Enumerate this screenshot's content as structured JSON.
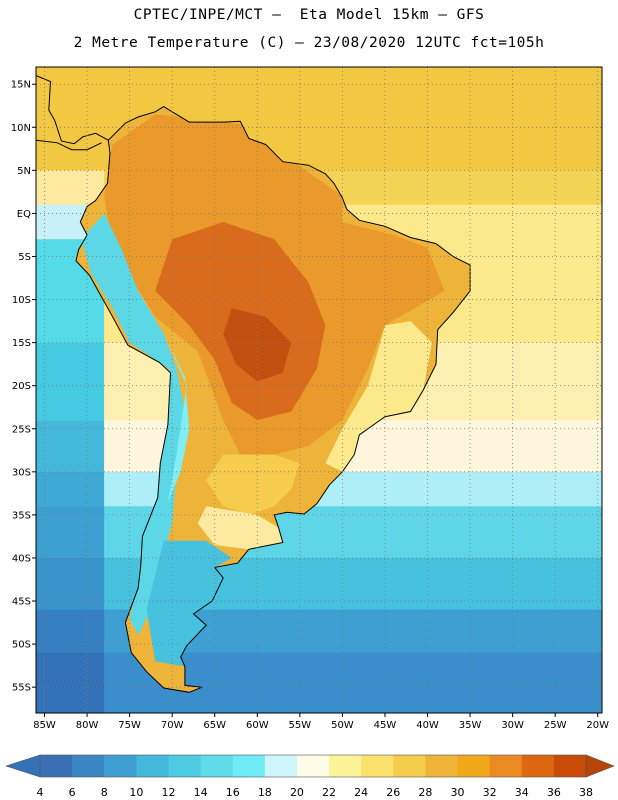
{
  "header": {
    "title_line1": "CPTEC/INPE/MCT –  Eta Model 15km – GFS",
    "title_line2": "2 Metre Temperature (C) – 23/08/2020 12UTC fct=105h"
  },
  "map": {
    "region": "South America",
    "lat_labels": [
      "15N",
      "10N",
      "5N",
      "EQ",
      "5S",
      "10S",
      "15S",
      "20S",
      "25S",
      "30S",
      "35S",
      "40S",
      "45S",
      "50S",
      "55S"
    ],
    "lat_values": [
      15,
      10,
      5,
      0,
      -5,
      -10,
      -15,
      -20,
      -25,
      -30,
      -35,
      -40,
      -45,
      -50,
      -55
    ],
    "lon_labels": [
      "85W",
      "80W",
      "75W",
      "70W",
      "65W",
      "60W",
      "55W",
      "50W",
      "45W",
      "40W",
      "35W",
      "30W",
      "25W",
      "20W"
    ],
    "lon_values": [
      -85,
      -80,
      -75,
      -70,
      -65,
      -60,
      -55,
      -50,
      -45,
      -40,
      -35,
      -30,
      -25,
      -20
    ],
    "lon_range": [
      -86,
      -19.5
    ],
    "lat_range": [
      -58,
      17
    ],
    "ocean_bands": [
      {
        "lat": 17,
        "east_color": "#f2c843",
        "pacific_color": "#f2c843"
      },
      {
        "lat": 5,
        "east_color": "#f4d455",
        "pacific_color": "#fde9a0"
      },
      {
        "lat": 1,
        "east_color": "#fbe98c",
        "pacific_color": "#c8f0f8"
      },
      {
        "lat": -3,
        "east_color": "#fbe98c",
        "pacific_color": "#55dbe8"
      },
      {
        "lat": -15,
        "east_color": "#fdf0b0",
        "pacific_color": "#44cbe2"
      },
      {
        "lat": -24,
        "east_color": "#fdf6dc",
        "pacific_color": "#43b8db"
      },
      {
        "lat": -30,
        "east_color": "#aeeef6",
        "pacific_color": "#3fa9d6"
      },
      {
        "lat": -34,
        "east_color": "#5fd6e8",
        "pacific_color": "#3c9fd1"
      },
      {
        "lat": -40,
        "east_color": "#46c2de",
        "pacific_color": "#3a94cc"
      },
      {
        "lat": -46,
        "east_color": "#3e9fd2",
        "pacific_color": "#367fc0"
      },
      {
        "lat": -51,
        "east_color": "#3a8ecb",
        "pacific_color": "#3472b8"
      },
      {
        "lat": -58,
        "east_color": "#3472b8",
        "pacific_color": "#3472b8"
      }
    ],
    "land_outline": [
      [
        -77.5,
        8.5
      ],
      [
        -76.5,
        9.5
      ],
      [
        -75.5,
        10.5
      ],
      [
        -74,
        11.2
      ],
      [
        -72,
        11.8
      ],
      [
        -71,
        12.4
      ],
      [
        -70,
        11.8
      ],
      [
        -68,
        10.6
      ],
      [
        -64,
        10.6
      ],
      [
        -62,
        10.7
      ],
      [
        -61,
        8.7
      ],
      [
        -59,
        8
      ],
      [
        -57,
        6
      ],
      [
        -54,
        5.6
      ],
      [
        -52,
        4.6
      ],
      [
        -51,
        3.5
      ],
      [
        -50,
        1.8
      ],
      [
        -49.5,
        0.5
      ],
      [
        -48,
        -0.8
      ],
      [
        -45,
        -1.5
      ],
      [
        -42,
        -2.8
      ],
      [
        -39,
        -3.5
      ],
      [
        -37,
        -5
      ],
      [
        -35,
        -6
      ],
      [
        -35,
        -9
      ],
      [
        -37,
        -11.5
      ],
      [
        -38.8,
        -13.5
      ],
      [
        -39,
        -17.5
      ],
      [
        -40.5,
        -20.5
      ],
      [
        -42,
        -23
      ],
      [
        -45,
        -23.6
      ],
      [
        -48,
        -25.7
      ],
      [
        -48.6,
        -28
      ],
      [
        -50,
        -30
      ],
      [
        -51.5,
        -31.5
      ],
      [
        -53,
        -33.7
      ],
      [
        -54.5,
        -34.9
      ],
      [
        -56.5,
        -34.7
      ],
      [
        -58,
        -35
      ],
      [
        -57.5,
        -36.5
      ],
      [
        -57,
        -38.2
      ],
      [
        -61,
        -39
      ],
      [
        -62.3,
        -40.6
      ],
      [
        -65,
        -41.1
      ],
      [
        -64,
        -42.3
      ],
      [
        -65.3,
        -45
      ],
      [
        -67.5,
        -46.5
      ],
      [
        -66,
        -47.8
      ],
      [
        -68.3,
        -50.2
      ],
      [
        -69,
        -51.5
      ],
      [
        -68.5,
        -52.6
      ],
      [
        -68.5,
        -54.8
      ],
      [
        -66.5,
        -55
      ],
      [
        -68,
        -55.6
      ],
      [
        -71,
        -55.1
      ],
      [
        -73,
        -53.2
      ],
      [
        -74.8,
        -51
      ],
      [
        -75.5,
        -47.5
      ],
      [
        -74,
        -43.5
      ],
      [
        -73.7,
        -41
      ],
      [
        -73.5,
        -37.5
      ],
      [
        -71.7,
        -33
      ],
      [
        -71.4,
        -29
      ],
      [
        -70.5,
        -24.5
      ],
      [
        -70.2,
        -18.5
      ],
      [
        -71.5,
        -17.3
      ],
      [
        -75.2,
        -15.3
      ],
      [
        -77,
        -12
      ],
      [
        -79.7,
        -7.2
      ],
      [
        -81.3,
        -5.5
      ],
      [
        -81,
        -4.2
      ],
      [
        -80,
        -2.5
      ],
      [
        -80.8,
        -1
      ],
      [
        -80,
        0.8
      ],
      [
        -79,
        1.5
      ],
      [
        -77.6,
        3.5
      ],
      [
        -77.3,
        7
      ],
      [
        -77.5,
        8.5
      ]
    ],
    "central_america": [
      [
        -77.5,
        8.5
      ],
      [
        -79,
        9.3
      ],
      [
        -80.5,
        8.9
      ],
      [
        -81.5,
        8.1
      ],
      [
        -83,
        8.4
      ],
      [
        -83.8,
        10.8
      ],
      [
        -84.5,
        12
      ],
      [
        -84.3,
        15.3
      ],
      [
        -86,
        16
      ],
      [
        -86,
        8.5
      ],
      [
        -83.5,
        8.2
      ],
      [
        -81.8,
        7.4
      ],
      [
        -80,
        7.4
      ],
      [
        -78.3,
        8.2
      ]
    ],
    "land_zones": [
      {
        "name": "warm-north",
        "color": "#ea9a2a",
        "poly": [
          [
            -77,
            8
          ],
          [
            -72,
            11.5
          ],
          [
            -62,
            10.4
          ],
          [
            -55,
            5.5
          ],
          [
            -50,
            2
          ],
          [
            -50,
            -1
          ],
          [
            -44,
            -2.5
          ],
          [
            -40,
            -4
          ],
          [
            -38,
            -9
          ],
          [
            -45,
            -13
          ],
          [
            -47,
            -18
          ],
          [
            -50,
            -24
          ],
          [
            -54,
            -27
          ],
          [
            -58,
            -28
          ],
          [
            -62,
            -28
          ],
          [
            -64,
            -24
          ],
          [
            -67,
            -16
          ],
          [
            -72,
            -12
          ],
          [
            -77,
            -4
          ],
          [
            -78,
            2
          ]
        ]
      },
      {
        "name": "hot-core",
        "color": "#d86c1c",
        "poly": [
          [
            -70,
            -3
          ],
          [
            -64,
            -1
          ],
          [
            -58,
            -3
          ],
          [
            -54,
            -8
          ],
          [
            -52,
            -13
          ],
          [
            -53,
            -18
          ],
          [
            -56,
            -23
          ],
          [
            -60,
            -24
          ],
          [
            -63,
            -22
          ],
          [
            -65,
            -17
          ],
          [
            -68,
            -13
          ],
          [
            -72,
            -9
          ]
        ]
      },
      {
        "name": "hottest",
        "color": "#c25011",
        "poly": [
          [
            -63,
            -11
          ],
          [
            -59,
            -12
          ],
          [
            -56,
            -15
          ],
          [
            -57,
            -18.5
          ],
          [
            -60,
            -19.5
          ],
          [
            -62.5,
            -17.5
          ],
          [
            -64,
            -14
          ]
        ]
      },
      {
        "name": "andes-cool",
        "color": "#5cd7e6",
        "poly": [
          [
            -78,
            0
          ],
          [
            -76,
            -4
          ],
          [
            -74,
            -9
          ],
          [
            -71,
            -14
          ],
          [
            -69.5,
            -18
          ],
          [
            -68.5,
            -23
          ],
          [
            -69.5,
            -30
          ],
          [
            -70,
            -36
          ],
          [
            -71.5,
            -41
          ],
          [
            -72.5,
            -46
          ],
          [
            -74,
            -49
          ],
          [
            -75,
            -47
          ],
          [
            -73.6,
            -41
          ],
          [
            -73.5,
            -37
          ],
          [
            -71.7,
            -32
          ],
          [
            -71,
            -24
          ],
          [
            -70.4,
            -18
          ],
          [
            -75,
            -15
          ],
          [
            -77,
            -11
          ],
          [
            -79.5,
            -7
          ],
          [
            -80.7,
            -3
          ]
        ]
      },
      {
        "name": "andes-cold",
        "color": "#7feef6",
        "poly": [
          [
            -70.5,
            -15
          ],
          [
            -68.5,
            -19
          ],
          [
            -68,
            -25
          ],
          [
            -69,
            -30
          ],
          [
            -70.5,
            -33.5
          ],
          [
            -69.5,
            -28
          ],
          [
            -68.3,
            -20
          ]
        ]
      },
      {
        "name": "east-coast-mild",
        "color": "#fbe98c",
        "poly": [
          [
            -45,
            -13
          ],
          [
            -42,
            -12.5
          ],
          [
            -39.5,
            -15
          ],
          [
            -40.5,
            -20.5
          ],
          [
            -42,
            -23
          ],
          [
            -45,
            -23.6
          ],
          [
            -48,
            -25.7
          ],
          [
            -48.6,
            -28
          ],
          [
            -50,
            -30
          ],
          [
            -52,
            -29
          ],
          [
            -50,
            -25
          ],
          [
            -47,
            -20
          ]
        ]
      },
      {
        "name": "patagonia",
        "color": "#46c2de",
        "poly": [
          [
            -71,
            -38
          ],
          [
            -66,
            -38
          ],
          [
            -63,
            -40
          ],
          [
            -65,
            -41.1
          ],
          [
            -64,
            -42.3
          ],
          [
            -65.3,
            -45
          ],
          [
            -67.5,
            -46.5
          ],
          [
            -66,
            -47.8
          ],
          [
            -68.3,
            -50.2
          ],
          [
            -69,
            -51.5
          ],
          [
            -68.5,
            -52.6
          ],
          [
            -72,
            -52
          ],
          [
            -73,
            -46
          ]
        ]
      },
      {
        "name": "pampas-warm",
        "color": "#f6cc4c",
        "poly": [
          [
            -64,
            -28
          ],
          [
            -58,
            -28
          ],
          [
            -55,
            -29
          ],
          [
            -56,
            -32
          ],
          [
            -58,
            -34
          ],
          [
            -61,
            -35
          ],
          [
            -64,
            -34
          ],
          [
            -66,
            -31
          ]
        ]
      },
      {
        "name": "pampas-mild",
        "color": "#fde9a0",
        "poly": [
          [
            -66,
            -34
          ],
          [
            -60,
            -35
          ],
          [
            -57.5,
            -36.5
          ],
          [
            -57,
            -38.2
          ],
          [
            -61,
            -39
          ],
          [
            -65,
            -38.5
          ],
          [
            -67,
            -36
          ]
        ]
      }
    ]
  },
  "colorbar": {
    "labels": [
      "4",
      "6",
      "8",
      "10",
      "12",
      "14",
      "16",
      "18",
      "20",
      "22",
      "24",
      "26",
      "28",
      "30",
      "32",
      "34",
      "36",
      "38"
    ],
    "colors": [
      "#3a6fb5",
      "#3b86c4",
      "#3e9fd2",
      "#43b8db",
      "#4ccbe2",
      "#5edae8",
      "#70ebf6",
      "#cdf5fb",
      "#fefbe6",
      "#fcf498",
      "#fbe26c",
      "#f6cc4c",
      "#eeb43a",
      "#f1a81a",
      "#ea8b22",
      "#dc6710",
      "#c94b07"
    ],
    "low_arrow_color": "#3472b8",
    "high_arrow_color": "#b84408"
  }
}
